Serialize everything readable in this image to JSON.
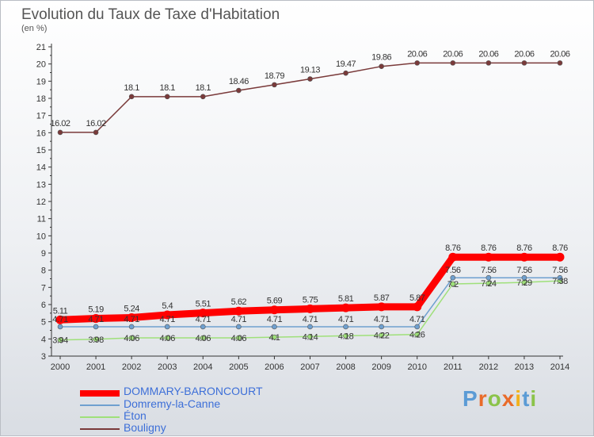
{
  "chart_data": {
    "type": "line",
    "title": "Evolution du Taux de Taxe d'Habitation",
    "ylabel": "(en %)",
    "xlabel": "",
    "x": [
      "2000",
      "2001",
      "2002",
      "2003",
      "2004",
      "2005",
      "2006",
      "2007",
      "2008",
      "2009",
      "2010",
      "2011",
      "2012",
      "2013",
      "2014"
    ],
    "ylim": [
      3,
      21
    ],
    "yticks": [
      3,
      4,
      5,
      6,
      7,
      8,
      9,
      10,
      11,
      12,
      13,
      14,
      15,
      16,
      17,
      18,
      19,
      20,
      21
    ],
    "grid": false,
    "legend_position": "bottom-left",
    "series": [
      {
        "name": "DOMMARY-BARONCOURT",
        "color": "#ff0000",
        "values": [
          5.11,
          5.19,
          5.24,
          5.4,
          5.51,
          5.62,
          5.69,
          5.75,
          5.81,
          5.87,
          5.87,
          8.76,
          8.76,
          8.76,
          8.76
        ],
        "labels": [
          "5.11",
          "5.19",
          "5.24",
          "5.4",
          "5.51",
          "5.62",
          "5.69",
          "5.75",
          "5.81",
          "5.87",
          "5.87",
          "8.76",
          "8.76",
          "8.76",
          "8.76"
        ]
      },
      {
        "name": "Domremy-la-Canne",
        "color": "#6fa0cf",
        "values": [
          4.71,
          4.71,
          4.71,
          4.71,
          4.71,
          4.71,
          4.71,
          4.71,
          4.71,
          4.71,
          4.71,
          7.56,
          7.56,
          7.56,
          7.56
        ],
        "labels": [
          "4.71",
          "4.71",
          "4.71",
          "4.71",
          "4.71",
          "4.71",
          "4.71",
          "4.71",
          "4.71",
          "4.71",
          "4.71",
          "7.56",
          "7.56",
          "7.56",
          "7.56"
        ]
      },
      {
        "name": "Éton",
        "color": "#9fe07a",
        "values": [
          3.94,
          3.98,
          4.06,
          4.06,
          4.06,
          4.06,
          4.1,
          4.14,
          4.18,
          4.22,
          4.26,
          7.2,
          7.24,
          7.29,
          7.38
        ],
        "labels": [
          "3.94",
          "3.98",
          "4.06",
          "4.06",
          "4.06",
          "4.06",
          "4.1",
          "4.14",
          "4.18",
          "4.22",
          "4.26",
          "7.2",
          "7.24",
          "7.29",
          "7.38"
        ]
      },
      {
        "name": "Bouligny",
        "color": "#7a3a3a",
        "values": [
          16.02,
          16.02,
          18.1,
          18.1,
          18.1,
          18.46,
          18.79,
          19.13,
          19.47,
          19.86,
          20.06,
          20.06,
          20.06,
          20.06,
          20.06
        ],
        "labels": [
          "16.02",
          "16.02",
          "18.1",
          "18.1",
          "18.1",
          "18.46",
          "18.79",
          "19.13",
          "19.47",
          "19.86",
          "20.06",
          "20.06",
          "20.06",
          "20.06",
          "20.06"
        ]
      }
    ]
  },
  "logo": {
    "text": "Proxiti",
    "colors": [
      "#5b9bd5",
      "#e96b2a",
      "#8bc34a",
      "#e96b2a",
      "#f2b21c",
      "#5b9bd5",
      "#8bc34a"
    ]
  }
}
